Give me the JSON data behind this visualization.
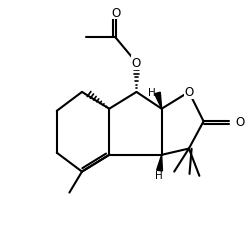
{
  "bg_color": "#ffffff",
  "line_color": "#000000",
  "lw": 1.5,
  "fig_w": 2.52,
  "fig_h": 2.32,
  "dpi": 100,
  "xlim": [
    -0.5,
    10.5
  ],
  "ylim": [
    -0.5,
    10.5
  ]
}
